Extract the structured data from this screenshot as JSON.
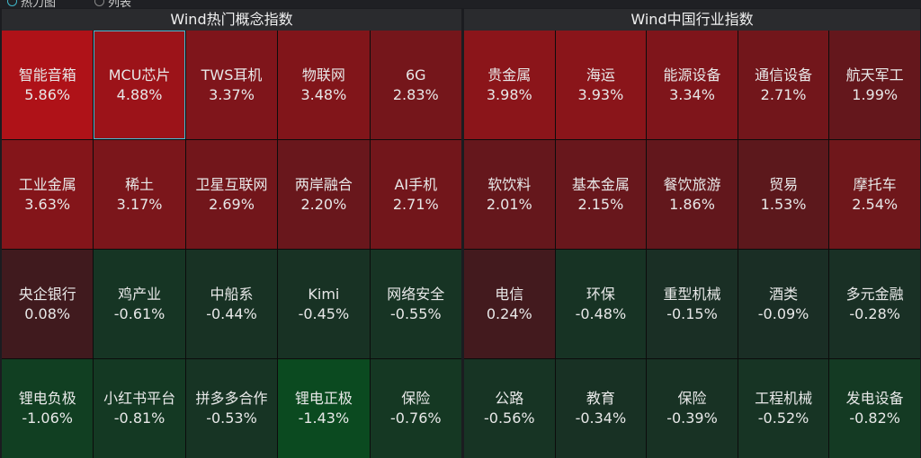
{
  "view_options": [
    {
      "label": "热力图",
      "selected": true
    },
    {
      "label": "列表",
      "selected": false
    }
  ],
  "colors": {
    "selected_border": "#4fb8d0",
    "up_max": "#b01218",
    "flat": "#3e1a1e",
    "down_max": "#0b4a20"
  },
  "panels": [
    {
      "title": "Wind热门概念指数",
      "tiles": [
        {
          "name": "智能音箱",
          "change": "5.86%",
          "value": 5.86
        },
        {
          "name": "MCU芯片",
          "change": "4.88%",
          "value": 4.88,
          "selected": true
        },
        {
          "name": "TWS耳机",
          "change": "3.37%",
          "value": 3.37
        },
        {
          "name": "物联网",
          "change": "3.48%",
          "value": 3.48
        },
        {
          "name": "6G",
          "change": "2.83%",
          "value": 2.83
        },
        {
          "name": "工业金属",
          "change": "3.63%",
          "value": 3.63
        },
        {
          "name": "稀土",
          "change": "3.17%",
          "value": 3.17
        },
        {
          "name": "卫星互联网",
          "change": "2.69%",
          "value": 2.69
        },
        {
          "name": "两岸融合",
          "change": "2.20%",
          "value": 2.2
        },
        {
          "name": "AI手机",
          "change": "2.71%",
          "value": 2.71
        },
        {
          "name": "央企银行",
          "change": "0.08%",
          "value": 0.08
        },
        {
          "name": "鸡产业",
          "change": "-0.61%",
          "value": -0.61
        },
        {
          "name": "中船系",
          "change": "-0.44%",
          "value": -0.44
        },
        {
          "name": "Kimi",
          "change": "-0.45%",
          "value": -0.45
        },
        {
          "name": "网络安全",
          "change": "-0.55%",
          "value": -0.55
        },
        {
          "name": "锂电负极",
          "change": "-1.06%",
          "value": -1.06
        },
        {
          "name": "小红书平台",
          "change": "-0.81%",
          "value": -0.81
        },
        {
          "name": "拼多多合作",
          "change": "-0.53%",
          "value": -0.53
        },
        {
          "name": "锂电正极",
          "change": "-1.43%",
          "value": -1.43
        },
        {
          "name": "保险",
          "change": "-0.76%",
          "value": -0.76
        }
      ]
    },
    {
      "title": "Wind中国行业指数",
      "tiles": [
        {
          "name": "贵金属",
          "change": "3.98%",
          "value": 3.98
        },
        {
          "name": "海运",
          "change": "3.93%",
          "value": 3.93
        },
        {
          "name": "能源设备",
          "change": "3.34%",
          "value": 3.34
        },
        {
          "name": "通信设备",
          "change": "2.71%",
          "value": 2.71
        },
        {
          "name": "航天军工",
          "change": "1.99%",
          "value": 1.99
        },
        {
          "name": "软饮料",
          "change": "2.01%",
          "value": 2.01
        },
        {
          "name": "基本金属",
          "change": "2.15%",
          "value": 2.15
        },
        {
          "name": "餐饮旅游",
          "change": "1.86%",
          "value": 1.86
        },
        {
          "name": "贸易",
          "change": "1.53%",
          "value": 1.53
        },
        {
          "name": "摩托车",
          "change": "2.54%",
          "value": 2.54
        },
        {
          "name": "电信",
          "change": "0.24%",
          "value": 0.24
        },
        {
          "name": "环保",
          "change": "-0.48%",
          "value": -0.48
        },
        {
          "name": "重型机械",
          "change": "-0.15%",
          "value": -0.15
        },
        {
          "name": "酒类",
          "change": "-0.09%",
          "value": -0.09
        },
        {
          "name": "多元金融",
          "change": "-0.28%",
          "value": -0.28
        },
        {
          "name": "公路",
          "change": "-0.56%",
          "value": -0.56
        },
        {
          "name": "教育",
          "change": "-0.34%",
          "value": -0.34
        },
        {
          "name": "保险",
          "change": "-0.39%",
          "value": -0.39
        },
        {
          "name": "工程机械",
          "change": "-0.52%",
          "value": -0.52
        },
        {
          "name": "发电设备",
          "change": "-0.82%",
          "value": -0.82
        }
      ]
    }
  ]
}
